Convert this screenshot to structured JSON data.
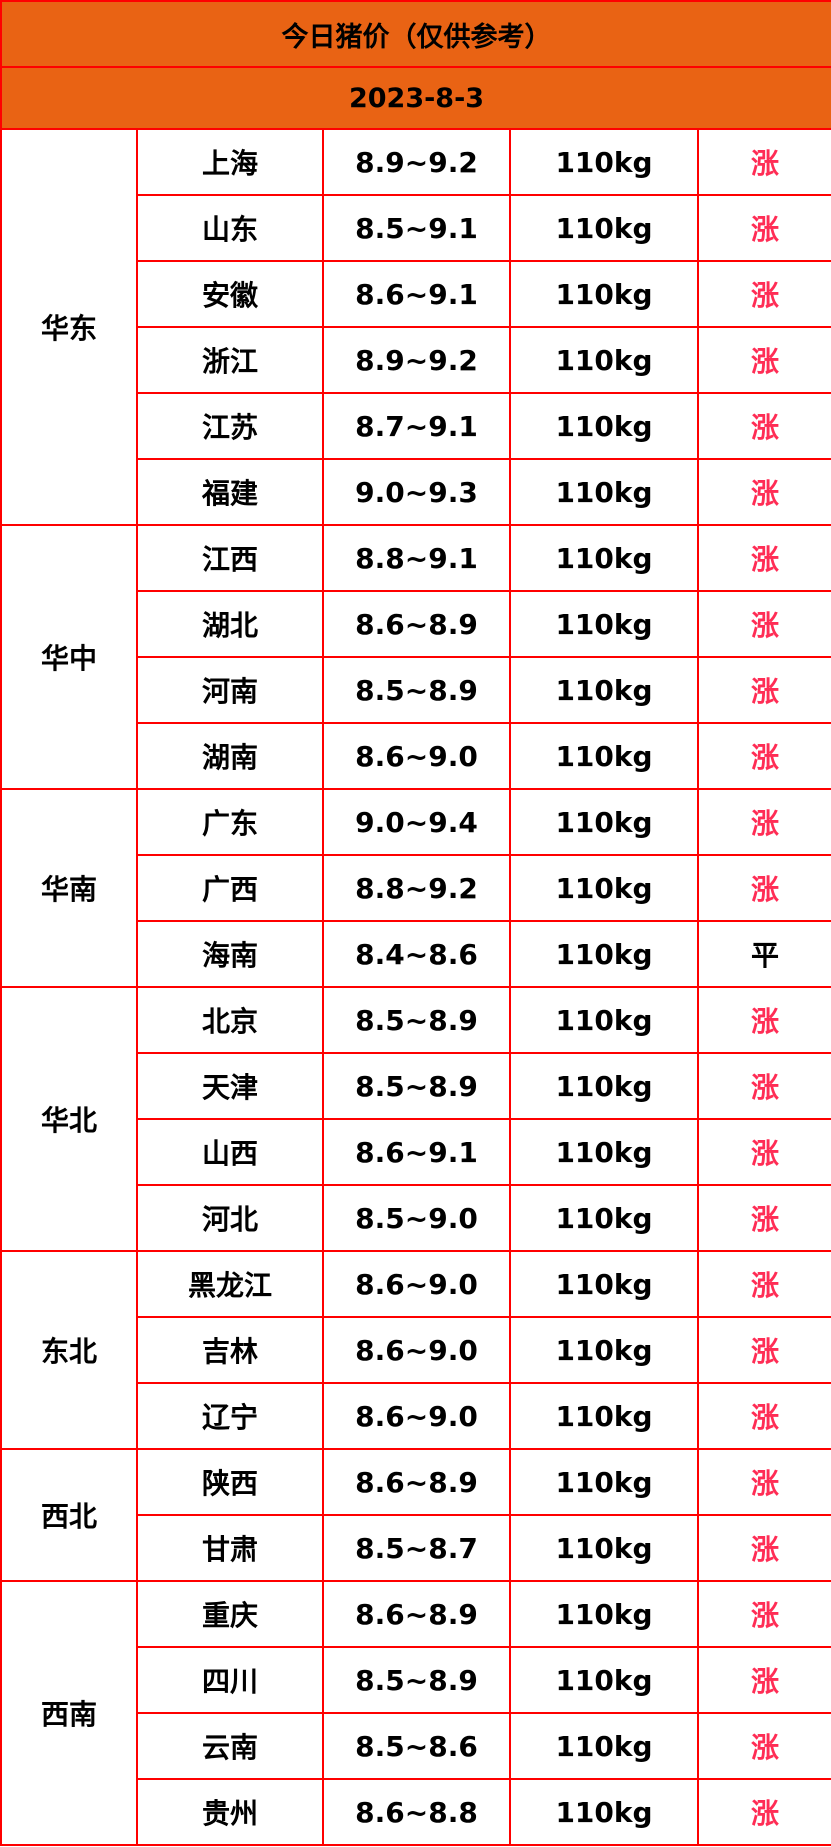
{
  "title": "今日猪价（仅供参考）",
  "date": "2023-8-3",
  "colors": {
    "header_bg": "#e96314",
    "border": "#ff0000",
    "up": "#ff2d55",
    "flat": "#000000"
  },
  "regions": [
    {
      "name": "华东",
      "rows": [
        {
          "province": "上海",
          "price": "8.9~9.2",
          "weight": "110kg",
          "trend": "涨"
        },
        {
          "province": "山东",
          "price": "8.5~9.1",
          "weight": "110kg",
          "trend": "涨"
        },
        {
          "province": "安徽",
          "price": "8.6~9.1",
          "weight": "110kg",
          "trend": "涨"
        },
        {
          "province": "浙江",
          "price": "8.9~9.2",
          "weight": "110kg",
          "trend": "涨"
        },
        {
          "province": "江苏",
          "price": "8.7~9.1",
          "weight": "110kg",
          "trend": "涨"
        },
        {
          "province": "福建",
          "price": "9.0~9.3",
          "weight": "110kg",
          "trend": "涨"
        }
      ]
    },
    {
      "name": "华中",
      "rows": [
        {
          "province": "江西",
          "price": "8.8~9.1",
          "weight": "110kg",
          "trend": "涨"
        },
        {
          "province": "湖北",
          "price": "8.6~8.9",
          "weight": "110kg",
          "trend": "涨"
        },
        {
          "province": "河南",
          "price": "8.5~8.9",
          "weight": "110kg",
          "trend": "涨"
        },
        {
          "province": "湖南",
          "price": "8.6~9.0",
          "weight": "110kg",
          "trend": "涨"
        }
      ]
    },
    {
      "name": "华南",
      "rows": [
        {
          "province": "广东",
          "price": "9.0~9.4",
          "weight": "110kg",
          "trend": "涨"
        },
        {
          "province": "广西",
          "price": "8.8~9.2",
          "weight": "110kg",
          "trend": "涨"
        },
        {
          "province": "海南",
          "price": "8.4~8.6",
          "weight": "110kg",
          "trend": "平"
        }
      ]
    },
    {
      "name": "华北",
      "rows": [
        {
          "province": "北京",
          "price": "8.5~8.9",
          "weight": "110kg",
          "trend": "涨"
        },
        {
          "province": "天津",
          "price": "8.5~8.9",
          "weight": "110kg",
          "trend": "涨"
        },
        {
          "province": "山西",
          "price": "8.6~9.1",
          "weight": "110kg",
          "trend": "涨"
        },
        {
          "province": "河北",
          "price": "8.5~9.0",
          "weight": "110kg",
          "trend": "涨"
        }
      ]
    },
    {
      "name": "东北",
      "rows": [
        {
          "province": "黑龙江",
          "price": "8.6~9.0",
          "weight": "110kg",
          "trend": "涨"
        },
        {
          "province": "吉林",
          "price": "8.6~9.0",
          "weight": "110kg",
          "trend": "涨"
        },
        {
          "province": "辽宁",
          "price": "8.6~9.0",
          "weight": "110kg",
          "trend": "涨"
        }
      ]
    },
    {
      "name": "西北",
      "rows": [
        {
          "province": "陕西",
          "price": "8.6~8.9",
          "weight": "110kg",
          "trend": "涨"
        },
        {
          "province": "甘肃",
          "price": "8.5~8.7",
          "weight": "110kg",
          "trend": "涨"
        }
      ]
    },
    {
      "name": "西南",
      "rows": [
        {
          "province": "重庆",
          "price": "8.6~8.9",
          "weight": "110kg",
          "trend": "涨"
        },
        {
          "province": "四川",
          "price": "8.5~8.9",
          "weight": "110kg",
          "trend": "涨"
        },
        {
          "province": "云南",
          "price": "8.5~8.6",
          "weight": "110kg",
          "trend": "涨"
        },
        {
          "province": "贵州",
          "price": "8.6~8.8",
          "weight": "110kg",
          "trend": "涨"
        }
      ]
    }
  ]
}
